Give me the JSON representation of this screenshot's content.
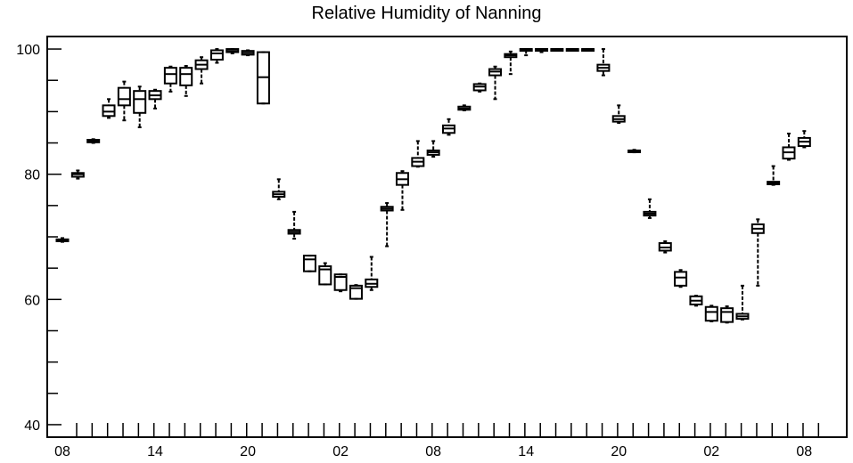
{
  "chart_data": {
    "type": "box",
    "title": "Relative Humidity of Nanning",
    "xlabel": "",
    "ylabel": "",
    "ylim": [
      38,
      102
    ],
    "y_ticks": [
      40,
      60,
      80,
      100
    ],
    "x_tick_labels": [
      "08",
      "14",
      "20",
      "02",
      "08",
      "14",
      "20",
      "02",
      "08"
    ],
    "x_tick_positions": [
      0,
      6,
      12,
      18,
      24,
      30,
      36,
      42,
      48
    ],
    "grid": false,
    "line_color": "#000000",
    "boxes": [
      {
        "x": 0,
        "min": 69.2,
        "q1": 69.3,
        "median": 69.5,
        "q3": 69.6,
        "max": 69.8
      },
      {
        "x": 1,
        "min": 79.3,
        "q1": 79.6,
        "median": 80.0,
        "q3": 80.2,
        "max": 80.6
      },
      {
        "x": 2,
        "min": 85.0,
        "q1": 85.1,
        "median": 85.3,
        "q3": 85.5,
        "max": 85.6
      },
      {
        "x": 3,
        "min": 89.0,
        "q1": 89.3,
        "median": 90.0,
        "q3": 91.0,
        "max": 92.0
      },
      {
        "x": 4,
        "min": 88.6,
        "q1": 91.0,
        "median": 92.0,
        "q3": 93.8,
        "max": 94.8
      },
      {
        "x": 5,
        "min": 87.5,
        "q1": 89.8,
        "median": 92.0,
        "q3": 93.3,
        "max": 94.0
      },
      {
        "x": 6,
        "min": 90.5,
        "q1": 92.0,
        "median": 92.6,
        "q3": 93.3,
        "max": 93.5
      },
      {
        "x": 7,
        "min": 93.2,
        "q1": 94.5,
        "median": 96.0,
        "q3": 97.0,
        "max": 97.2
      },
      {
        "x": 8,
        "min": 92.5,
        "q1": 94.2,
        "median": 96.0,
        "q3": 97.0,
        "max": 97.3
      },
      {
        "x": 9,
        "min": 94.5,
        "q1": 96.8,
        "median": 97.5,
        "q3": 98.2,
        "max": 98.7
      },
      {
        "x": 10,
        "min": 97.8,
        "q1": 98.3,
        "median": 99.3,
        "q3": 99.8,
        "max": 100.0
      },
      {
        "x": 11,
        "min": 99.3,
        "q1": 99.5,
        "median": 99.7,
        "q3": 100.0,
        "max": 100.0
      },
      {
        "x": 12,
        "min": 99.0,
        "q1": 99.1,
        "median": 99.4,
        "q3": 99.7,
        "max": 99.8
      },
      {
        "x": 13,
        "min": 91.3,
        "q1": 91.3,
        "median": 95.5,
        "q3": 99.5,
        "max": 99.5
      },
      {
        "x": 14,
        "min": 76.0,
        "q1": 76.4,
        "median": 76.8,
        "q3": 77.2,
        "max": 79.2
      },
      {
        "x": 15,
        "min": 69.7,
        "q1": 70.5,
        "median": 70.8,
        "q3": 71.1,
        "max": 74.0
      },
      {
        "x": 16,
        "min": 64.5,
        "q1": 64.5,
        "median": 66.4,
        "q3": 67.0,
        "max": 67.0
      },
      {
        "x": 17,
        "min": 62.4,
        "q1": 62.4,
        "median": 64.8,
        "q3": 65.3,
        "max": 65.8
      },
      {
        "x": 18,
        "min": 61.3,
        "q1": 61.5,
        "median": 63.6,
        "q3": 64.0,
        "max": 64.0
      },
      {
        "x": 19,
        "min": 60.1,
        "q1": 60.1,
        "median": 61.8,
        "q3": 62.2,
        "max": 62.3
      },
      {
        "x": 20,
        "min": 61.5,
        "q1": 62.0,
        "median": 62.5,
        "q3": 63.2,
        "max": 66.8
      },
      {
        "x": 21,
        "min": 68.5,
        "q1": 74.2,
        "median": 74.5,
        "q3": 74.8,
        "max": 75.4
      },
      {
        "x": 22,
        "min": 74.3,
        "q1": 78.3,
        "median": 79.2,
        "q3": 80.2,
        "max": 80.5
      },
      {
        "x": 23,
        "min": 81.2,
        "q1": 81.3,
        "median": 82.0,
        "q3": 82.6,
        "max": 85.3
      },
      {
        "x": 24,
        "min": 82.8,
        "q1": 83.1,
        "median": 83.5,
        "q3": 83.8,
        "max": 85.3
      },
      {
        "x": 25,
        "min": 86.3,
        "q1": 86.6,
        "median": 87.3,
        "q3": 87.8,
        "max": 88.8
      },
      {
        "x": 26,
        "min": 90.2,
        "q1": 90.3,
        "median": 90.5,
        "q3": 90.8,
        "max": 91.0
      },
      {
        "x": 27,
        "min": 93.2,
        "q1": 93.4,
        "median": 94.0,
        "q3": 94.4,
        "max": 94.5
      },
      {
        "x": 28,
        "min": 92.0,
        "q1": 95.8,
        "median": 96.4,
        "q3": 96.8,
        "max": 97.2
      },
      {
        "x": 29,
        "min": 96.0,
        "q1": 98.7,
        "median": 99.0,
        "q3": 99.2,
        "max": 99.6
      },
      {
        "x": 30,
        "min": 99.0,
        "q1": 99.8,
        "median": 100.0,
        "q3": 100.0,
        "max": 100.0
      },
      {
        "x": 31,
        "min": 99.5,
        "q1": 99.9,
        "median": 100.0,
        "q3": 100.0,
        "max": 100.0
      },
      {
        "x": 32,
        "min": 99.8,
        "q1": 100.0,
        "median": 100.0,
        "q3": 100.0,
        "max": 100.0
      },
      {
        "x": 33,
        "min": 99.8,
        "q1": 100.0,
        "median": 100.0,
        "q3": 100.0,
        "max": 100.0
      },
      {
        "x": 34,
        "min": 99.8,
        "q1": 100.0,
        "median": 100.0,
        "q3": 100.0,
        "max": 100.0
      },
      {
        "x": 35,
        "min": 95.8,
        "q1": 96.5,
        "median": 97.0,
        "q3": 97.5,
        "max": 100.0
      },
      {
        "x": 36,
        "min": 88.2,
        "q1": 88.4,
        "median": 88.8,
        "q3": 89.3,
        "max": 91.0
      },
      {
        "x": 37,
        "min": 83.5,
        "q1": 83.6,
        "median": 83.7,
        "q3": 83.8,
        "max": 83.9
      },
      {
        "x": 38,
        "min": 73.0,
        "q1": 73.4,
        "median": 73.7,
        "q3": 74.0,
        "max": 76.0
      },
      {
        "x": 39,
        "min": 67.5,
        "q1": 67.8,
        "median": 68.3,
        "q3": 69.0,
        "max": 69.3
      },
      {
        "x": 40,
        "min": 62.0,
        "q1": 62.2,
        "median": 63.5,
        "q3": 64.4,
        "max": 64.7
      },
      {
        "x": 41,
        "min": 59.0,
        "q1": 59.2,
        "median": 59.8,
        "q3": 60.5,
        "max": 60.6
      },
      {
        "x": 42,
        "min": 56.5,
        "q1": 56.6,
        "median": 58.0,
        "q3": 58.8,
        "max": 59.0
      },
      {
        "x": 43,
        "min": 56.3,
        "q1": 56.4,
        "median": 58.0,
        "q3": 58.6,
        "max": 58.9
      },
      {
        "x": 44,
        "min": 56.8,
        "q1": 56.9,
        "median": 57.3,
        "q3": 57.7,
        "max": 62.2
      },
      {
        "x": 45,
        "min": 62.2,
        "q1": 70.6,
        "median": 71.3,
        "q3": 72.0,
        "max": 72.8
      },
      {
        "x": 46,
        "min": 78.3,
        "q1": 78.4,
        "median": 78.6,
        "q3": 78.8,
        "max": 81.3
      },
      {
        "x": 47,
        "min": 82.3,
        "q1": 82.5,
        "median": 83.5,
        "q3": 84.3,
        "max": 86.5
      },
      {
        "x": 48,
        "min": 84.3,
        "q1": 84.5,
        "median": 85.2,
        "q3": 85.8,
        "max": 86.9
      }
    ]
  }
}
